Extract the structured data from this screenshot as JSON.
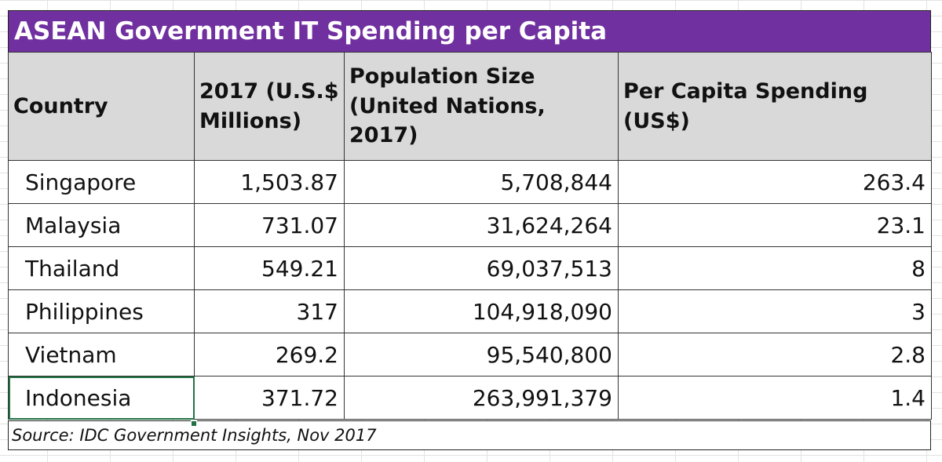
{
  "chart_data": {
    "type": "table",
    "title": "ASEAN Government IT Spending per Capita",
    "columns": [
      "Country",
      "2017 (U.S.$\nMillions)",
      "Population Size\n(United Nations, 2017)",
      "Per Capita Spending (US$)"
    ],
    "rows": [
      [
        "Singapore",
        "1,503.87",
        "5,708,844",
        "263.4"
      ],
      [
        "Malaysia",
        "731.07",
        "31,624,264",
        "23.1"
      ],
      [
        "Thailand",
        "549.21",
        "69,037,513",
        "8"
      ],
      [
        "Philippines",
        "317",
        "104,918,090",
        "3"
      ],
      [
        "Vietnam",
        "269.2",
        "95,540,800",
        "2.8"
      ],
      [
        "Indonesia",
        "371.72",
        "263,991,379",
        "1.4"
      ]
    ],
    "source": "Source: IDC Government Insights, Nov 2017"
  },
  "colors": {
    "title_background": "#7030a0",
    "header_background": "#d9d9d9",
    "selection": "#217346"
  }
}
